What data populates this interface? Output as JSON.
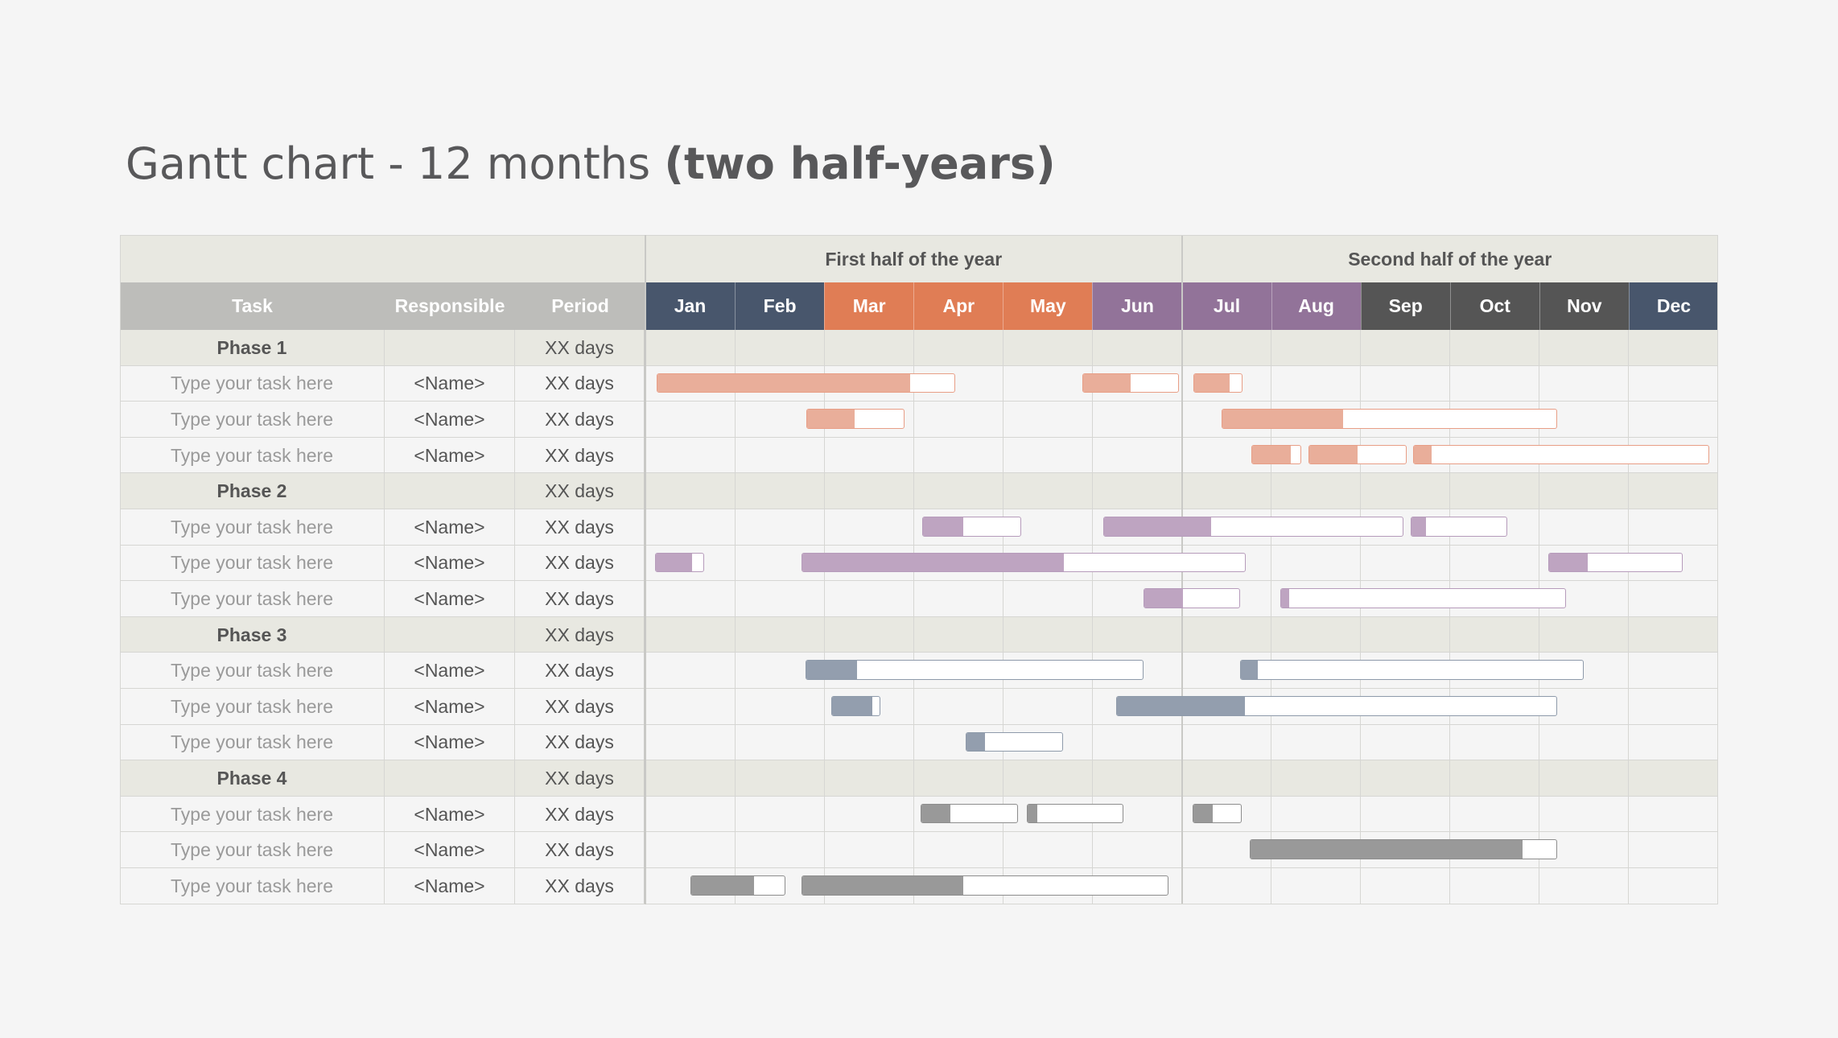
{
  "title": {
    "regular": "Gantt chart - 12 months",
    "bold": "(two half-years)"
  },
  "halves": [
    "First half of the year",
    "Second half of the year"
  ],
  "headers": {
    "task": "Task",
    "responsible": "Responsible",
    "period": "Period"
  },
  "months": [
    "Jan",
    "Feb",
    "Mar",
    "Apr",
    "May",
    "Jun",
    "Jul",
    "Aug",
    "Sep",
    "Oct",
    "Nov",
    "Dec"
  ],
  "month_colors": [
    "#48566c",
    "#48566c",
    "#e07d55",
    "#e07d55",
    "#e07d55",
    "#927399",
    "#927399",
    "#927399",
    "#555555",
    "#555555",
    "#555555",
    "#48566c"
  ],
  "colors": {
    "header_bg": "#e8e8e1",
    "phase_bg": "#e8e8e1",
    "col_header_bg": "#bdbdba",
    "grid": "#d6d6d3",
    "phases": [
      {
        "border": "#e89e86",
        "fill": "#e9ae9a"
      },
      {
        "border": "#b69bbb",
        "fill": "#bea4c1"
      },
      {
        "border": "#8e9aaa",
        "fill": "#939eae"
      },
      {
        "border": "#8d8d8d",
        "fill": "#999999"
      }
    ]
  },
  "chart_data": {
    "type": "gantt",
    "title": "Gantt chart - 12 months (two half-years)",
    "x_unit": "months",
    "xlim": [
      0,
      12
    ],
    "phases": [
      {
        "name": "Phase 1",
        "period": "XX days",
        "tasks": [
          {
            "task": "Type your task here",
            "responsible": "<Name>",
            "period": "XX days",
            "bars": [
              {
                "start": 0.13,
                "end": 3.47,
                "progress": 0.85
              },
              {
                "start": 4.89,
                "end": 5.97,
                "progress": 0.5
              },
              {
                "start": 6.13,
                "end": 6.68,
                "progress": 0.75
              }
            ]
          },
          {
            "task": "Type your task here",
            "responsible": "<Name>",
            "period": "XX days",
            "bars": [
              {
                "start": 1.8,
                "end": 2.9,
                "progress": 0.49
              },
              {
                "start": 6.45,
                "end": 10.2,
                "progress": 0.36
              }
            ]
          },
          {
            "task": "Type your task here",
            "responsible": "<Name>",
            "period": "XX days",
            "bars": [
              {
                "start": 6.78,
                "end": 7.34,
                "progress": 0.8
              },
              {
                "start": 7.42,
                "end": 8.52,
                "progress": 0.5
              },
              {
                "start": 8.59,
                "end": 11.9,
                "progress": 0.06
              }
            ]
          }
        ]
      },
      {
        "name": "Phase 2",
        "period": "XX days",
        "tasks": [
          {
            "task": "Type your task here",
            "responsible": "<Name>",
            "period": "XX days",
            "bars": [
              {
                "start": 3.1,
                "end": 4.2,
                "progress": 0.41
              },
              {
                "start": 5.12,
                "end": 8.48,
                "progress": 0.36
              },
              {
                "start": 8.56,
                "end": 9.64,
                "progress": 0.15
              }
            ]
          },
          {
            "task": "Type your task here",
            "responsible": "<Name>",
            "period": "XX days",
            "bars": [
              {
                "start": 0.11,
                "end": 0.66,
                "progress": 0.75
              },
              {
                "start": 1.75,
                "end": 6.72,
                "progress": 0.59
              },
              {
                "start": 10.1,
                "end": 11.6,
                "progress": 0.29
              }
            ]
          },
          {
            "task": "Type your task here",
            "responsible": "<Name>",
            "period": "XX days",
            "bars": [
              {
                "start": 5.57,
                "end": 6.65,
                "progress": 0.41
              },
              {
                "start": 7.1,
                "end": 10.3,
                "progress": 0.03
              }
            ]
          }
        ]
      },
      {
        "name": "Phase 3",
        "period": "XX days",
        "tasks": [
          {
            "task": "Type your task here",
            "responsible": "<Name>",
            "period": "XX days",
            "bars": [
              {
                "start": 1.79,
                "end": 5.57,
                "progress": 0.15
              },
              {
                "start": 6.65,
                "end": 10.5,
                "progress": 0.05
              }
            ]
          },
          {
            "task": "Type your task here",
            "responsible": "<Name>",
            "period": "XX days",
            "bars": [
              {
                "start": 2.08,
                "end": 2.63,
                "progress": 0.85
              },
              {
                "start": 5.27,
                "end": 10.2,
                "progress": 0.29
              }
            ]
          },
          {
            "task": "Type your task here",
            "responsible": "<Name>",
            "period": "XX days",
            "bars": [
              {
                "start": 3.58,
                "end": 4.67,
                "progress": 0.2
              }
            ]
          }
        ]
      },
      {
        "name": "Phase 4",
        "period": "XX days",
        "tasks": [
          {
            "task": "Type your task here",
            "responsible": "<Name>",
            "period": "XX days",
            "bars": [
              {
                "start": 3.08,
                "end": 4.17,
                "progress": 0.3
              },
              {
                "start": 4.27,
                "end": 5.35,
                "progress": 0.1
              },
              {
                "start": 6.12,
                "end": 6.67,
                "progress": 0.41
              }
            ]
          },
          {
            "task": "Type your task here",
            "responsible": "<Name>",
            "period": "XX days",
            "bars": [
              {
                "start": 6.76,
                "end": 10.2,
                "progress": 0.89
              }
            ]
          },
          {
            "task": "Type your task here",
            "responsible": "<Name>",
            "period": "XX days",
            "bars": [
              {
                "start": 0.5,
                "end": 1.57,
                "progress": 0.67
              },
              {
                "start": 1.75,
                "end": 5.85,
                "progress": 0.44
              }
            ]
          }
        ]
      }
    ]
  }
}
